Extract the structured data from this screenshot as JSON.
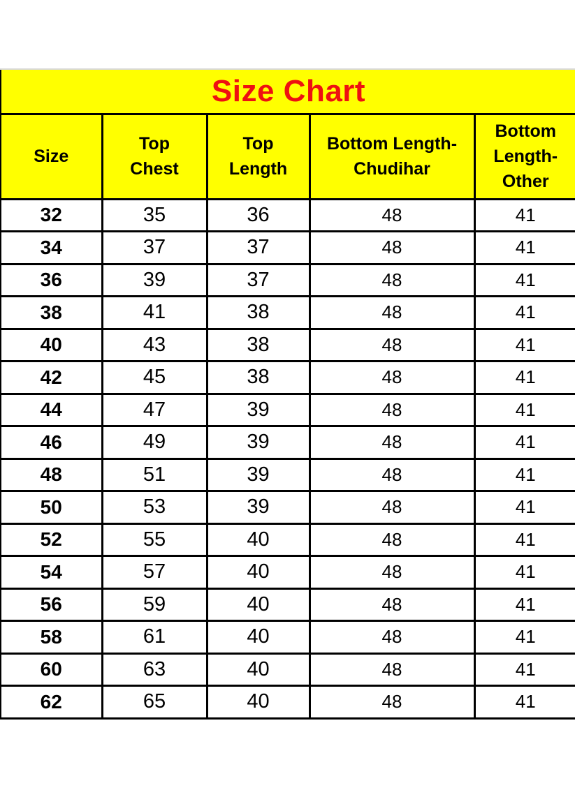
{
  "title": "Size Chart",
  "colors": {
    "table_background": "#FFFF00",
    "title_text": "#EE1111",
    "border": "#000000",
    "page_background": "#FFFFFF",
    "data_text": "#000000"
  },
  "header_display": {
    "size": "Size",
    "top_chest": "Top\nChest",
    "top_length": "Top\nLength",
    "bottom_chudihar": "Bottom Length-\nChudihar",
    "bottom_other": "Bottom\nLength-\nOther"
  },
  "chart_data": {
    "type": "table",
    "title": "Size Chart",
    "columns": [
      "Size",
      "Top Chest",
      "Top Length",
      "Bottom Length-Chudihar",
      "Bottom Length-Other"
    ],
    "rows": [
      {
        "size": 32,
        "top_chest": 35,
        "top_length": 36,
        "bottom_chudihar": 48,
        "bottom_other": 41
      },
      {
        "size": 34,
        "top_chest": 37,
        "top_length": 37,
        "bottom_chudihar": 48,
        "bottom_other": 41
      },
      {
        "size": 36,
        "top_chest": 39,
        "top_length": 37,
        "bottom_chudihar": 48,
        "bottom_other": 41
      },
      {
        "size": 38,
        "top_chest": 41,
        "top_length": 38,
        "bottom_chudihar": 48,
        "bottom_other": 41
      },
      {
        "size": 40,
        "top_chest": 43,
        "top_length": 38,
        "bottom_chudihar": 48,
        "bottom_other": 41
      },
      {
        "size": 42,
        "top_chest": 45,
        "top_length": 38,
        "bottom_chudihar": 48,
        "bottom_other": 41
      },
      {
        "size": 44,
        "top_chest": 47,
        "top_length": 39,
        "bottom_chudihar": 48,
        "bottom_other": 41
      },
      {
        "size": 46,
        "top_chest": 49,
        "top_length": 39,
        "bottom_chudihar": 48,
        "bottom_other": 41
      },
      {
        "size": 48,
        "top_chest": 51,
        "top_length": 39,
        "bottom_chudihar": 48,
        "bottom_other": 41
      },
      {
        "size": 50,
        "top_chest": 53,
        "top_length": 39,
        "bottom_chudihar": 48,
        "bottom_other": 41
      },
      {
        "size": 52,
        "top_chest": 55,
        "top_length": 40,
        "bottom_chudihar": 48,
        "bottom_other": 41
      },
      {
        "size": 54,
        "top_chest": 57,
        "top_length": 40,
        "bottom_chudihar": 48,
        "bottom_other": 41
      },
      {
        "size": 56,
        "top_chest": 59,
        "top_length": 40,
        "bottom_chudihar": 48,
        "bottom_other": 41
      },
      {
        "size": 58,
        "top_chest": 61,
        "top_length": 40,
        "bottom_chudihar": 48,
        "bottom_other": 41
      },
      {
        "size": 60,
        "top_chest": 63,
        "top_length": 40,
        "bottom_chudihar": 48,
        "bottom_other": 41
      },
      {
        "size": 62,
        "top_chest": 65,
        "top_length": 40,
        "bottom_chudihar": 48,
        "bottom_other": 41
      }
    ]
  }
}
